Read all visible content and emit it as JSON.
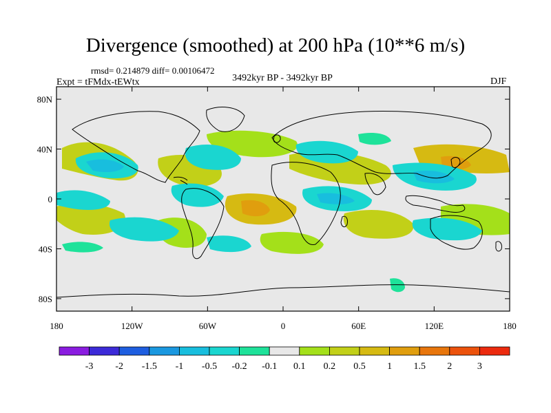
{
  "title": "Divergence (smoothed) at 200 hPa (10**6 m/s)",
  "stats": {
    "rmsd_label": "rmsd= 0.214879  diff= 0.00106472"
  },
  "experiment": "Expt = tFMdx-tEWtx",
  "period": "3492kyr BP - 3492kyr BP",
  "season": "DJF",
  "map": {
    "lon_range": [
      -180,
      180
    ],
    "lat_range": [
      -90,
      90
    ],
    "y_ticks": [
      {
        "value": 80,
        "label": "80N"
      },
      {
        "value": 40,
        "label": "40N"
      },
      {
        "value": 0,
        "label": "0"
      },
      {
        "value": -40,
        "label": "40S"
      },
      {
        "value": -80,
        "label": "80S"
      }
    ],
    "x_ticks": [
      {
        "value": -180,
        "label": "180"
      },
      {
        "value": -120,
        "label": "120W"
      },
      {
        "value": -60,
        "label": "60W"
      },
      {
        "value": 0,
        "label": "0"
      },
      {
        "value": 60,
        "label": "60E"
      },
      {
        "value": 120,
        "label": "120E"
      },
      {
        "value": 180,
        "label": "180"
      }
    ]
  },
  "colorbar": {
    "colors": [
      "#8a1ce0",
      "#3c2ad8",
      "#1e5ee0",
      "#1a98e0",
      "#18bede",
      "#1ad6d0",
      "#1ee29a",
      "#e8e8e8",
      "#a4e01a",
      "#c2d018",
      "#d6ba12",
      "#e09e0e",
      "#e8760c",
      "#ec520c",
      "#ec2a0e"
    ],
    "labels": [
      "-3",
      "-2",
      "-1.5",
      "-1",
      "-0.5",
      "-0.2",
      "-0.1",
      "0.1",
      "0.2",
      "0.5",
      "1",
      "1.5",
      "2",
      "3"
    ]
  },
  "colors": {
    "background": "#e8e8e8",
    "coast": "#000000"
  }
}
